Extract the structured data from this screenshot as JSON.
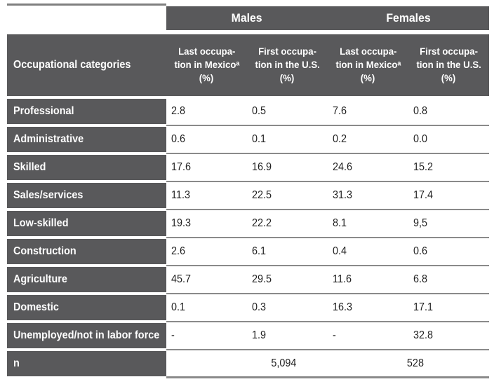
{
  "colors": {
    "dark_cell": "#59595b",
    "separator_line": "#8a8a8a",
    "top_rule": "#7f7f7f",
    "header_text": "#ffffff",
    "data_text": "#1f1f1f",
    "background": "#ffffff"
  },
  "table": {
    "group_headers": [
      {
        "label": "Males"
      },
      {
        "label": "Females"
      }
    ],
    "row_header_label": "Occupational categories",
    "columns": [
      {
        "line1": "Last occupa-",
        "line2": "tion in Mexicoᵃ",
        "line3": "(%)"
      },
      {
        "line1": "First occupa-",
        "line2": "tion in the U.S.",
        "line3": "(%)"
      },
      {
        "line1": "Last occupa-",
        "line2": "tion in Mexicoᵃ",
        "line3": "(%)"
      },
      {
        "line1": "First occupa-",
        "line2": "tion in the U.S.",
        "line3": "(%)"
      }
    ]
  },
  "chart_data": {
    "type": "table",
    "title": "",
    "columns": [
      "Occupational categories",
      "Males — Last occupation in Mexicoᵃ (%)",
      "Males — First occupation in the U.S. (%)",
      "Females — Last occupation in Mexicoᵃ (%)",
      "Females — First occupation in the U.S. (%)"
    ],
    "rows": [
      [
        "Professional",
        "2.8",
        "0.5",
        "7.6",
        "0.8"
      ],
      [
        "Administrative",
        "0.6",
        "0.1",
        "0.2",
        "0.0"
      ],
      [
        "Skilled",
        "17.6",
        "16.9",
        "24.6",
        "15.2"
      ],
      [
        "Sales/services",
        "11.3",
        "22.5",
        "31.3",
        "17.4"
      ],
      [
        "Low-skilled",
        "19.3",
        "22.2",
        "8.1",
        "9,5"
      ],
      [
        "Construction",
        "2.6",
        "6.1",
        "0.4",
        "0.6"
      ],
      [
        "Agriculture",
        "45.7",
        "29.5",
        "11.6",
        "6.8"
      ],
      [
        "Domestic",
        "0.1",
        "0.3",
        "16.3",
        "17.1"
      ],
      [
        "Unemployed/not in labor force",
        "-",
        "1.9",
        "-",
        "32.8"
      ],
      [
        "n",
        "5,094",
        "528"
      ]
    ]
  }
}
